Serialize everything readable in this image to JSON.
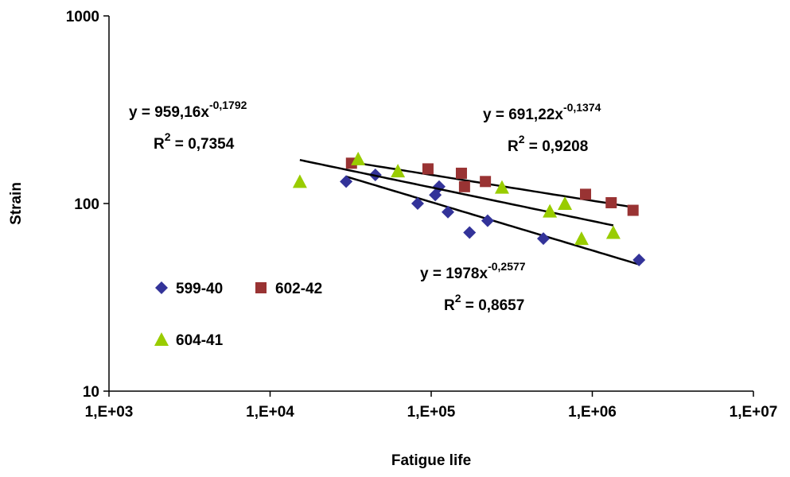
{
  "chart_data": {
    "type": "scatter",
    "x_label": "Fatigue life",
    "y_label": "Strain",
    "x_log": true,
    "y_log": true,
    "grid": false,
    "legend": "left",
    "xlim": [
      1000,
      10000000
    ],
    "ylim": [
      10,
      1000
    ],
    "xticks": [
      {
        "value": 1000,
        "label": "1,E+03"
      },
      {
        "value": 10000,
        "label": "1,E+04"
      },
      {
        "value": 100000,
        "label": "1,E+05"
      },
      {
        "value": 1000000,
        "label": "1,E+06"
      },
      {
        "value": 10000000,
        "label": "1,E+07"
      }
    ],
    "yticks": [
      10,
      100,
      1000
    ],
    "equation_parts": [
      "y = ",
      "x"
    ],
    "r2_parts": [
      "R",
      "2",
      " = "
    ],
    "series": [
      {
        "name": "599-40",
        "color": "#333399",
        "marker": "diamond",
        "x": [
          29650,
          45000,
          82400,
          106000,
          112000,
          127000,
          173000,
          224000,
          497000,
          1950000
        ],
        "values": [
          131,
          142,
          100,
          111,
          123,
          90,
          70,
          81,
          65,
          50
        ],
        "trendline": {
          "a": 1978,
          "b": -0.2577,
          "r2": 0.8657,
          "labels": {
            "a": "1978",
            "b": "-0,2577",
            "r2": "0,8657"
          }
        }
      },
      {
        "name": "602-42",
        "color": "#993333",
        "marker": "square",
        "x": [
          32000,
          95500,
          154000,
          161000,
          217000,
          908000,
          1310000,
          1790000
        ],
        "values": [
          164,
          153,
          145,
          123,
          131,
          112,
          101,
          92
        ],
        "trendline": {
          "a": 691.22,
          "b": -0.1374,
          "r2": 0.9208,
          "labels": {
            "a": "691,22",
            "b": "-0,1374",
            "r2": "0,9208"
          }
        }
      },
      {
        "name": "604-41",
        "color": "#99cc00",
        "marker": "triangle",
        "x": [
          15300,
          35200,
          62100,
          275000,
          545000,
          676000,
          857000,
          1350000
        ],
        "values": [
          131,
          173,
          149,
          122,
          91,
          100,
          65,
          70
        ],
        "trendline": {
          "a": 959.16,
          "b": -0.1792,
          "r2": 0.7354,
          "labels": {
            "a": "959,16",
            "b": "-0,1792",
            "r2": "0,7354"
          }
        }
      }
    ]
  }
}
